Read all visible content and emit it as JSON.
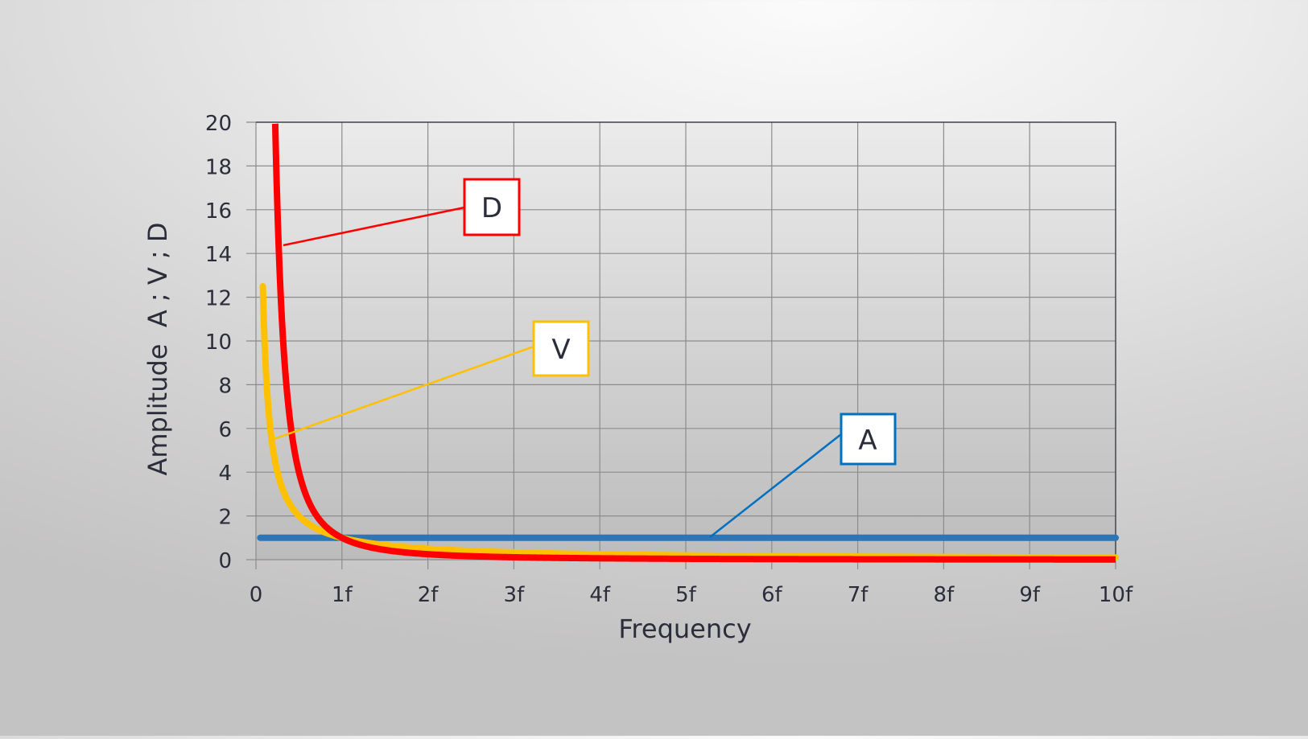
{
  "chart_data": {
    "type": "line",
    "title": "",
    "xlabel": "Frequency",
    "ylabel": "Amplitude  A ; V ; D",
    "xlim": [
      0,
      10
    ],
    "ylim": [
      0,
      20
    ],
    "x_ticks": [
      0,
      1,
      2,
      3,
      4,
      5,
      6,
      7,
      8,
      9,
      10
    ],
    "x_tick_labels": [
      "0",
      "1f",
      "2f",
      "3f",
      "4f",
      "5f",
      "6f",
      "7f",
      "8f",
      "9f",
      "10f"
    ],
    "y_ticks": [
      0,
      2,
      4,
      6,
      8,
      10,
      12,
      14,
      16,
      18,
      20
    ],
    "y_tick_labels": [
      "0",
      "2",
      "4",
      "6",
      "8",
      "10",
      "12",
      "14",
      "16",
      "18",
      "20"
    ],
    "grid": true,
    "legend": "callouts",
    "series": [
      {
        "name": "A",
        "color": "#2e75b6",
        "relation": "constant",
        "x": [
          0.05,
          0.5,
          1,
          2,
          3,
          4,
          5,
          6,
          7,
          8,
          9,
          10
        ],
        "values": [
          1,
          1,
          1,
          1,
          1,
          1,
          1,
          1,
          1,
          1,
          1,
          1
        ]
      },
      {
        "name": "V",
        "color": "#ffc000",
        "relation": "1/f",
        "x": [
          0.08,
          0.1,
          0.15,
          0.2,
          0.3,
          0.5,
          0.75,
          1,
          1.5,
          2,
          3,
          4,
          5,
          6,
          7,
          8,
          9,
          10
        ],
        "values": [
          12.5,
          10,
          6.67,
          5,
          3.33,
          2,
          1.33,
          1,
          0.67,
          0.5,
          0.33,
          0.25,
          0.2,
          0.17,
          0.14,
          0.13,
          0.11,
          0.1
        ]
      },
      {
        "name": "D",
        "color": "#ff0000",
        "relation": "1/f^2",
        "x": [
          0.224,
          0.25,
          0.3,
          0.35,
          0.4,
          0.5,
          0.6,
          0.75,
          1,
          1.25,
          1.5,
          2,
          3,
          4,
          5,
          6,
          7,
          8,
          9,
          10
        ],
        "values": [
          20,
          16,
          11.11,
          8.16,
          6.25,
          4,
          2.78,
          1.78,
          1,
          0.64,
          0.44,
          0.25,
          0.11,
          0.06,
          0.04,
          0.03,
          0.02,
          0.02,
          0.01,
          0.01
        ]
      }
    ],
    "annotations": [
      {
        "text": "D",
        "color": "#ff0000",
        "target_x": 0.32,
        "target_y": 14.3
      },
      {
        "text": "V",
        "color": "#ffc000",
        "target_x": 0.21,
        "target_y": 5.5
      },
      {
        "text": "A",
        "color": "#0070c0",
        "target_x": 5.3,
        "target_y": 1.0
      }
    ]
  },
  "labels": {
    "x_axis_title": "Frequency",
    "y_axis_title": "Amplitude  A ; V ; D",
    "callout_d": "D",
    "callout_v": "V",
    "callout_a": "A"
  },
  "colors": {
    "A": "#2e75b6",
    "A_callout": "#0070c0",
    "V": "#ffc000",
    "D": "#ff0000",
    "grid": "#8c8c8c",
    "axis_text": "#2b2d3a"
  }
}
